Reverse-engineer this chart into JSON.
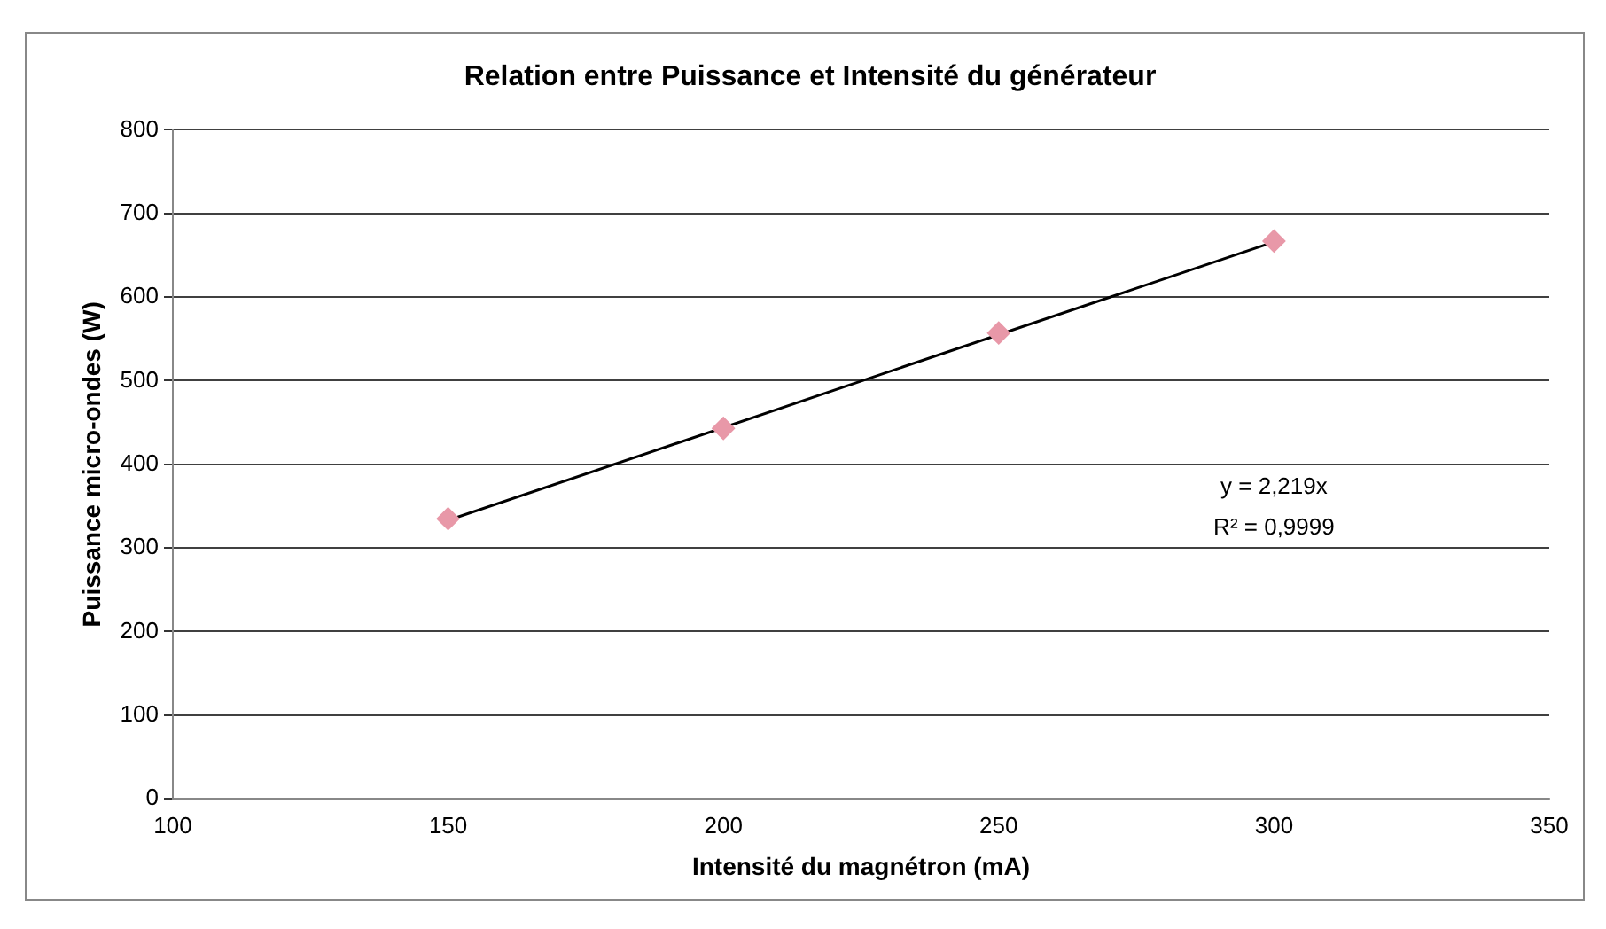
{
  "chart_data": {
    "type": "scatter",
    "title": "Relation entre Puissance et Intensité du générateur",
    "xlabel": "Intensité du magnétron (mA)",
    "ylabel": "Puissance micro-ondes (W)",
    "x": [
      150,
      200,
      250,
      300
    ],
    "series": [
      {
        "type": "scatter",
        "color": "#e898a8",
        "marker": "diamond",
        "values": [
          335,
          443,
          557,
          667
        ]
      },
      {
        "type": "line",
        "color": "#000000",
        "marker": "none",
        "x": [
          150,
          300
        ],
        "values": [
          333,
          666
        ]
      }
    ],
    "xlim": [
      100,
      350
    ],
    "xticks": [
      100,
      150,
      200,
      250,
      300,
      350
    ],
    "ylim": [
      0,
      800
    ],
    "yticks": [
      0,
      100,
      200,
      300,
      400,
      500,
      600,
      700,
      800
    ],
    "grid": "y",
    "legend": false,
    "annotations": [
      "y = 2,219x",
      "R² = 0,9999"
    ]
  }
}
